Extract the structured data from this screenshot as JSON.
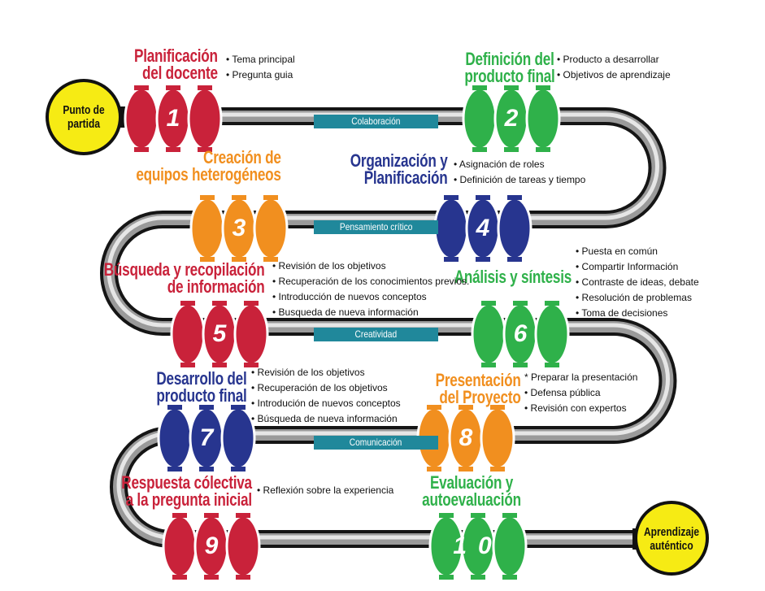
{
  "colors": {
    "red": "#c9223a",
    "green": "#2fb14a",
    "orange": "#f18f1f",
    "blue": "#27358f",
    "teal": "#20889b",
    "yellow": "#f6eb14"
  },
  "start": {
    "lines": [
      "Punto de",
      "partida"
    ]
  },
  "end": {
    "lines": [
      "Aprendizaje",
      "auténtico"
    ]
  },
  "bars": [
    "Colaboración",
    "Pensamiento crítico",
    "Creatividad",
    "Comunicación"
  ],
  "steps": [
    {
      "number": "1",
      "color": "red",
      "title": [
        "Planificación",
        "del docente"
      ],
      "bullets": [
        "• Tema principal",
        "• Pregunta guia"
      ]
    },
    {
      "number": "2",
      "color": "green",
      "title": [
        "Definición del",
        "producto final"
      ],
      "bullets": [
        "• Producto a desarrollar",
        "• Objetivos de aprendizaje"
      ]
    },
    {
      "number": "3",
      "color": "orange",
      "title": [
        "Creación de",
        "equipos heterogéneos"
      ],
      "bullets": []
    },
    {
      "number": "4",
      "color": "blue",
      "title": [
        "Organización y",
        "Planificación"
      ],
      "bullets": [
        "• Asignación de roles",
        "• Definición de tareas y tiempo"
      ]
    },
    {
      "number": "5",
      "color": "red",
      "title": [
        "Búsqueda y recopilación",
        "de información"
      ],
      "bullets": [
        "• Revisión de los objetivos",
        "• Recuperación de los conocimientos previos.",
        "• Introducción de nuevos conceptos",
        "• Busqueda de nueva información"
      ]
    },
    {
      "number": "6",
      "color": "green",
      "title": [
        "Análisis y síntesis"
      ],
      "bullets": [
        "• Puesta en común",
        "• Compartir Información",
        "• Contraste de ideas, debate",
        "• Resolución de problemas",
        "• Toma de decisiones"
      ]
    },
    {
      "number": "7",
      "color": "blue",
      "title": [
        "Desarrollo del",
        "producto final"
      ],
      "bullets": [
        "• Revisión de los objetivos",
        "• Recuperación de los objetivos",
        "• Introdución de nuevos conceptos",
        "• Búsqueda de nueva información"
      ]
    },
    {
      "number": "8",
      "color": "orange",
      "title": [
        "Presentación",
        "del Proyecto"
      ],
      "bullets": [
        "* Preparar la presentación",
        "• Defensa pública",
        "• Revisión con expertos"
      ]
    },
    {
      "number": "9",
      "color": "red",
      "title": [
        "Respuesta cólectiva",
        "a la pregunta inicial"
      ],
      "bullets": [
        "• Reflexión sobre la experiencia"
      ]
    },
    {
      "number": "10",
      "color": "green",
      "title": [
        "Evaluación y",
        "autoevaluación"
      ],
      "bullets": []
    }
  ]
}
